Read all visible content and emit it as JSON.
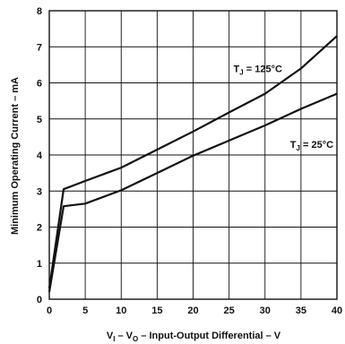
{
  "chart_data": {
    "type": "line",
    "x_ticks": [
      0,
      5,
      10,
      15,
      20,
      25,
      30,
      35,
      40
    ],
    "y_ticks": [
      0,
      1,
      2,
      3,
      4,
      5,
      6,
      7,
      8
    ],
    "xlim": [
      0,
      40
    ],
    "ylim": [
      0,
      8
    ],
    "grid": true,
    "xlabel": {
      "v1": "V",
      "sub1": "I",
      "v2": " – V",
      "sub2": "O",
      "rest": " – Input-Output Differential – V"
    },
    "ylabel": "Minimum Operating Current – mA",
    "series": [
      {
        "label": {
          "t": "T",
          "sub": "J",
          "rest": " = 125°C"
        },
        "label_at": {
          "x": 29,
          "y": 6.3
        },
        "color": "#111111",
        "points": [
          [
            0,
            0.3
          ],
          [
            2,
            3.05
          ],
          [
            5,
            3.28
          ],
          [
            10,
            3.65
          ],
          [
            15,
            4.15
          ],
          [
            20,
            4.65
          ],
          [
            25,
            5.18
          ],
          [
            30,
            5.7
          ],
          [
            35,
            6.4
          ],
          [
            40,
            7.3
          ]
        ]
      },
      {
        "label": {
          "t": "T",
          "sub": "J",
          "rest": " = 25°C"
        },
        "label_at": {
          "x": 36.5,
          "y": 4.2
        },
        "color": "#111111",
        "points": [
          [
            0,
            0.2
          ],
          [
            2,
            2.58
          ],
          [
            5,
            2.65
          ],
          [
            10,
            3.02
          ],
          [
            15,
            3.5
          ],
          [
            20,
            3.98
          ],
          [
            25,
            4.4
          ],
          [
            30,
            4.82
          ],
          [
            35,
            5.28
          ],
          [
            40,
            5.7
          ]
        ]
      }
    ]
  }
}
